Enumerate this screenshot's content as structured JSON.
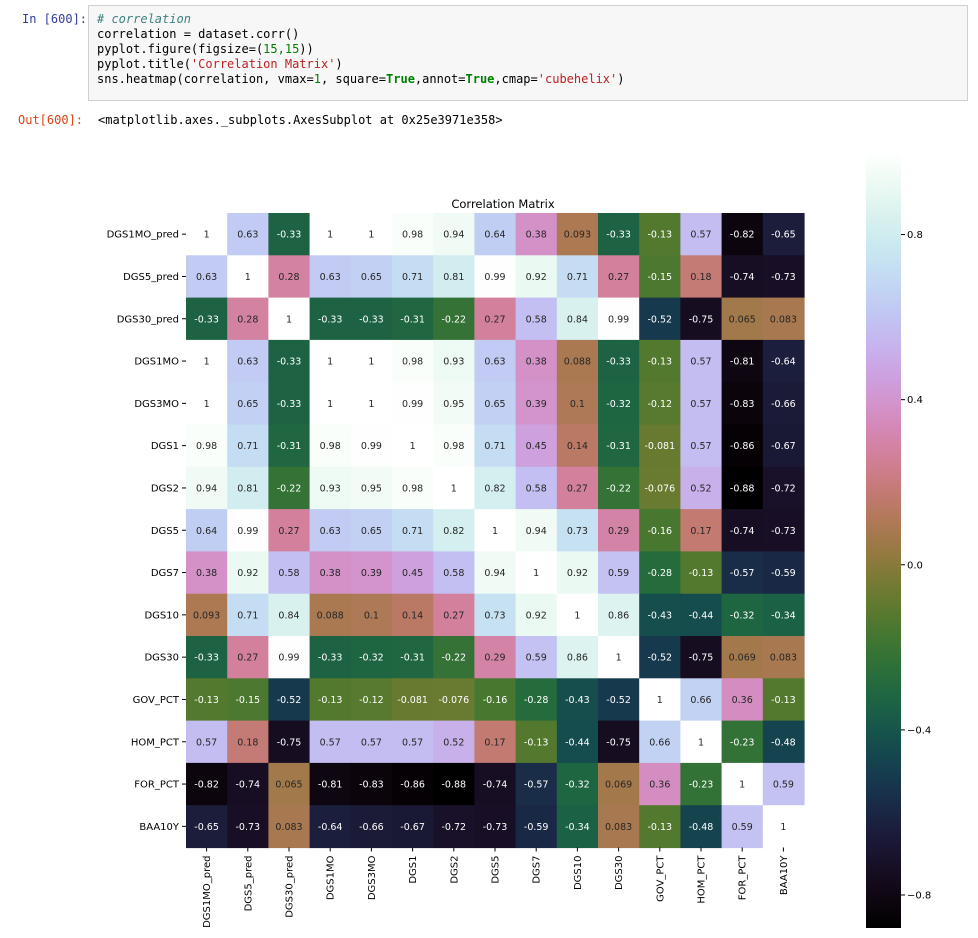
{
  "input_cell": {
    "prompt": "In [600]:",
    "comment": "# correlation",
    "line2": "correlation = dataset.corr()",
    "line3_pre": "pyplot.figure(figsize=(",
    "line3_num": "15,15",
    "line3_post": "))",
    "line4_pre": "pyplot.title(",
    "line4_str": "'Correlation Matrix'",
    "line4_post": ")",
    "line5_a": "sns.heatmap(correlation, vmax=",
    "line5_b": "1",
    "line5_c": ", square=",
    "line5_d": "True",
    "line5_e": ",annot=",
    "line5_f": "True",
    "line5_g": ",cmap=",
    "line5_h": "'cubehelix'",
    "line5_i": ")"
  },
  "output_cell": {
    "prompt": "Out[600]:",
    "text": "<matplotlib.axes._subplots.AxesSubplot at 0x25e3971e358>"
  },
  "chart_data": {
    "type": "heatmap",
    "title": "Correlation Matrix",
    "cmap": "cubehelix",
    "vmin": -0.88,
    "vmax": 1,
    "labels": [
      "DGS1MO_pred",
      "DGS5_pred",
      "DGS30_pred",
      "DGS1MO",
      "DGS3MO",
      "DGS1",
      "DGS2",
      "DGS5",
      "DGS7",
      "DGS10",
      "DGS30",
      "GOV_PCT",
      "HOM_PCT",
      "FOR_PCT",
      "BAA10Y"
    ],
    "annotations": [
      [
        "1",
        "0.63",
        "-0.33",
        "1",
        "1",
        "0.98",
        "0.94",
        "0.64",
        "0.38",
        "0.093",
        "-0.33",
        "-0.13",
        "0.57",
        "-0.82",
        "-0.65"
      ],
      [
        "0.63",
        "1",
        "0.28",
        "0.63",
        "0.65",
        "0.71",
        "0.81",
        "0.99",
        "0.92",
        "0.71",
        "0.27",
        "-0.15",
        "0.18",
        "-0.74",
        "-0.73"
      ],
      [
        "-0.33",
        "0.28",
        "1",
        "-0.33",
        "-0.33",
        "-0.31",
        "-0.22",
        "0.27",
        "0.58",
        "0.84",
        "0.99",
        "-0.52",
        "-0.75",
        "0.065",
        "0.083"
      ],
      [
        "1",
        "0.63",
        "-0.33",
        "1",
        "1",
        "0.98",
        "0.93",
        "0.63",
        "0.38",
        "0.088",
        "-0.33",
        "-0.13",
        "0.57",
        "-0.81",
        "-0.64"
      ],
      [
        "1",
        "0.65",
        "-0.33",
        "1",
        "1",
        "0.99",
        "0.95",
        "0.65",
        "0.39",
        "0.1",
        "-0.32",
        "-0.12",
        "0.57",
        "-0.83",
        "-0.66"
      ],
      [
        "0.98",
        "0.71",
        "-0.31",
        "0.98",
        "0.99",
        "1",
        "0.98",
        "0.71",
        "0.45",
        "0.14",
        "-0.31",
        "-0.081",
        "0.57",
        "-0.86",
        "-0.67"
      ],
      [
        "0.94",
        "0.81",
        "-0.22",
        "0.93",
        "0.95",
        "0.98",
        "1",
        "0.82",
        "0.58",
        "0.27",
        "-0.22",
        "-0.076",
        "0.52",
        "-0.88",
        "-0.72"
      ],
      [
        "0.64",
        "0.99",
        "0.27",
        "0.63",
        "0.65",
        "0.71",
        "0.82",
        "1",
        "0.94",
        "0.73",
        "0.29",
        "-0.16",
        "0.17",
        "-0.74",
        "-0.73"
      ],
      [
        "0.38",
        "0.92",
        "0.58",
        "0.38",
        "0.39",
        "0.45",
        "0.58",
        "0.94",
        "1",
        "0.92",
        "0.59",
        "-0.28",
        "-0.13",
        "-0.57",
        "-0.59"
      ],
      [
        "0.093",
        "0.71",
        "0.84",
        "0.088",
        "0.1",
        "0.14",
        "0.27",
        "0.73",
        "0.92",
        "1",
        "0.86",
        "-0.43",
        "-0.44",
        "-0.32",
        "-0.34"
      ],
      [
        "-0.33",
        "0.27",
        "0.99",
        "-0.33",
        "-0.32",
        "-0.31",
        "-0.22",
        "0.29",
        "0.59",
        "0.86",
        "1",
        "-0.52",
        "-0.75",
        "0.069",
        "0.083"
      ],
      [
        "-0.13",
        "-0.15",
        "-0.52",
        "-0.13",
        "-0.12",
        "-0.081",
        "-0.076",
        "-0.16",
        "-0.28",
        "-0.43",
        "-0.52",
        "1",
        "0.66",
        "0.36",
        "-0.13"
      ],
      [
        "0.57",
        "0.18",
        "-0.75",
        "0.57",
        "0.57",
        "0.57",
        "0.52",
        "0.17",
        "-0.13",
        "-0.44",
        "-0.75",
        "0.66",
        "1",
        "-0.23",
        "-0.48"
      ],
      [
        "-0.82",
        "-0.74",
        "0.065",
        "-0.81",
        "-0.83",
        "-0.86",
        "-0.88",
        "-0.74",
        "-0.57",
        "-0.32",
        "0.069",
        "0.36",
        "-0.23",
        "1",
        "0.59"
      ],
      [
        "-0.65",
        "-0.73",
        "0.083",
        "-0.64",
        "-0.66",
        "-0.67",
        "-0.72",
        "-0.73",
        "-0.59",
        "-0.34",
        "0.083",
        "-0.13",
        "-0.48",
        "0.59",
        "1"
      ]
    ],
    "colorbar_ticks": [
      {
        "value": 0.8,
        "label": "0.8"
      },
      {
        "value": 0.4,
        "label": "0.4"
      },
      {
        "value": 0.0,
        "label": "0.0"
      },
      {
        "value": -0.4,
        "label": "−0.4"
      },
      {
        "value": -0.8,
        "label": "−0.8"
      }
    ]
  }
}
